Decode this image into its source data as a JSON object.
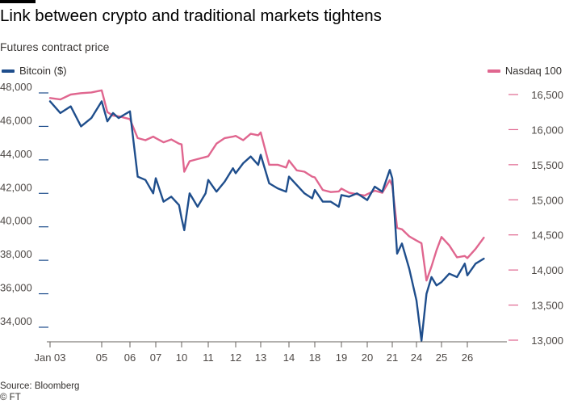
{
  "header": {
    "title": "Link between crypto and traditional markets tightens",
    "subtitle": "Futures contract price"
  },
  "legend": {
    "left_label": "Bitcoin ($)",
    "right_label": "Nasdaq 100"
  },
  "footer": {
    "source": "Source: Bloomberg",
    "credit": "© FT"
  },
  "colors": {
    "bitcoin": "#1f4e8c",
    "nasdaq": "#e0668f",
    "axis": "#66605c",
    "text": "#33302e"
  },
  "chart_data": {
    "type": "line",
    "title": "Link between crypto and traditional markets tightens",
    "subtitle": "Futures contract price",
    "categories": [
      "Jan 03",
      "05",
      "06",
      "07",
      "10",
      "11",
      "12",
      "13",
      "14",
      "18",
      "19",
      "20",
      "21",
      "24",
      "25",
      "26"
    ],
    "left_axis": {
      "ticks": [
        "48,000",
        "46,000",
        "44,000",
        "42,000",
        "40,000",
        "38,000",
        "36,000",
        "34,000"
      ],
      "ylim": [
        32500,
        48500
      ]
    },
    "right_axis": {
      "ticks": [
        "16,500",
        "16,000",
        "15,500",
        "15,000",
        "14,500",
        "14,000",
        "13,500",
        "13,000"
      ],
      "ylim": [
        12900,
        16800
      ]
    },
    "grid": false,
    "legend_position": "top",
    "series": [
      {
        "name": "Bitcoin ($)",
        "axis": "left",
        "x": [
          0,
          0.2,
          0.4,
          0.6,
          0.8,
          1.0,
          1.2,
          1.4,
          1.6,
          1.8,
          2.0,
          2.3,
          2.6,
          2.9,
          3.0,
          3.3,
          3.6,
          3.9,
          4.0,
          4.1,
          4.3,
          4.6,
          4.9,
          5.0,
          5.3,
          5.6,
          5.9,
          6.0,
          6.3,
          6.6,
          6.9,
          7.0,
          7.3,
          7.6,
          7.9,
          8.0,
          8.3,
          8.6,
          8.9,
          9.0,
          9.3,
          9.6,
          9.9,
          10.0,
          10.3,
          10.6,
          10.9,
          11.0,
          11.3,
          11.6,
          11.9,
          12.0,
          12.2,
          12.4,
          12.7,
          13.0,
          13.2,
          13.4,
          13.6,
          13.8,
          14.0,
          14.3,
          14.6,
          14.9,
          15.0,
          15.3,
          15.6
        ],
        "values": [
          47500,
          46800,
          47200,
          46000,
          46500,
          47500,
          46300,
          46800,
          46500,
          46700,
          46900,
          43000,
          42800,
          42000,
          42900,
          41500,
          41800,
          41300,
          40500,
          39800,
          42000,
          41200,
          42000,
          42800,
          42100,
          42700,
          43500,
          43200,
          43800,
          44200,
          43700,
          44300,
          42600,
          42300,
          42100,
          43000,
          42500,
          42000,
          41700,
          42200,
          41500,
          41500,
          41200,
          41900,
          41800,
          42000,
          41700,
          41600,
          42400,
          42100,
          43400,
          42900,
          38400,
          39000,
          37500,
          35600,
          33200,
          36000,
          37000,
          36500,
          36700,
          37200,
          37000,
          37800,
          37100,
          37800,
          38100
        ]
      },
      {
        "name": "Nasdaq 100",
        "axis": "right",
        "x": [
          0,
          0.2,
          0.4,
          0.6,
          0.8,
          1.0,
          1.2,
          1.4,
          1.6,
          1.8,
          2.0,
          2.3,
          2.6,
          2.9,
          3.0,
          3.3,
          3.6,
          3.9,
          4.0,
          4.1,
          4.3,
          4.6,
          4.9,
          5.0,
          5.3,
          5.6,
          5.9,
          6.0,
          6.3,
          6.6,
          6.9,
          7.0,
          7.3,
          7.6,
          7.9,
          8.0,
          8.3,
          8.6,
          8.9,
          9.0,
          9.3,
          9.6,
          9.9,
          10.0,
          10.3,
          10.6,
          10.9,
          11.0,
          11.3,
          11.6,
          11.9,
          12.0,
          12.2,
          12.4,
          12.7,
          13.0,
          13.2,
          13.4,
          13.6,
          13.8,
          14.0,
          14.3,
          14.6,
          14.9,
          15.0,
          15.3,
          15.6
        ],
        "values": [
          16450,
          16430,
          16500,
          16520,
          16530,
          16560,
          16250,
          16200,
          16190,
          16170,
          16150,
          15880,
          15850,
          15900,
          15880,
          15820,
          15860,
          15800,
          15790,
          15400,
          15550,
          15580,
          15610,
          15620,
          15800,
          15880,
          15900,
          15910,
          15850,
          15940,
          15920,
          15960,
          15500,
          15500,
          15460,
          15560,
          15420,
          15400,
          15330,
          15320,
          15140,
          15110,
          15120,
          15160,
          15100,
          15080,
          15060,
          15080,
          15130,
          15100,
          15280,
          15200,
          14600,
          14580,
          14480,
          14420,
          14380,
          13850,
          14050,
          14280,
          14470,
          14350,
          14180,
          14200,
          14170,
          14300,
          14460
        ]
      }
    ]
  }
}
